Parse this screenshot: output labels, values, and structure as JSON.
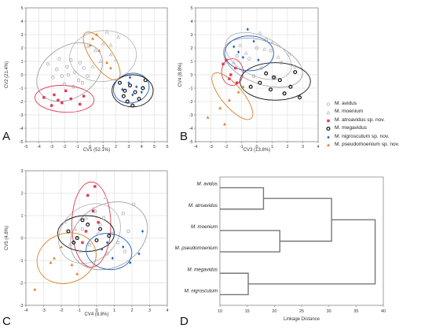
{
  "colors": {
    "M. avidus": "#a0a0a0",
    "M. moenium": "#b9b9b9",
    "M. atroavidus sp. nov.": "#e03a55",
    "M. megavidus": "#111111",
    "M. nigroscutum sp. nov.": "#1f5fbf",
    "M. pseudomoenium sp. nov.": "#d9822b"
  },
  "legend": {
    "position": "right",
    "items": [
      {
        "label": "M. avidus",
        "species": "M. avidus",
        "marker": "circle-open"
      },
      {
        "label": "M. moenium",
        "species": "M. moenium",
        "marker": "triangle-open"
      },
      {
        "label": "M. atroavidus sp. nov.",
        "species": "M. atroavidus sp. nov.",
        "marker": "square"
      },
      {
        "label": "M. megavidus",
        "species": "M. megavidus",
        "marker": "circle-bold"
      },
      {
        "label": "M. nigroscutum sp. nov.",
        "species": "M. nigroscutum sp. nov.",
        "marker": "diamond"
      },
      {
        "label": "M. pseudomoenium sp. nov.",
        "species": "M. pseudomoenium sp. nov.",
        "marker": "triangle-filled"
      }
    ]
  },
  "panel_letters": {
    "A": "A",
    "B": "B",
    "C": "C",
    "D": "D"
  },
  "chart_data": [
    {
      "type": "scatter",
      "panel": "A",
      "xlabel": "CV1 (52.1%)",
      "ylabel": "CV2 (21.4%)",
      "xlim": [
        -5,
        6
      ],
      "ylim": [
        -5,
        5
      ],
      "xticks": [
        -5,
        -4,
        -3,
        -2,
        -1,
        0,
        1,
        2,
        3,
        4,
        5,
        6
      ],
      "yticks": [
        -5,
        -4,
        -3,
        -2,
        -1,
        0,
        1,
        2,
        3,
        4,
        5
      ],
      "grid": true,
      "ellipses": [
        {
          "species": "M. avidus",
          "cx": -1.6,
          "cy": 0.2,
          "rx": 2.8,
          "ry": 1.9,
          "angle": 35
        },
        {
          "species": "M. moenium",
          "cx": 1.0,
          "cy": 1.4,
          "rx": 2.6,
          "ry": 1.9,
          "angle": 5
        },
        {
          "species": "M. atroavidus sp. nov.",
          "cx": -2.0,
          "cy": -1.8,
          "rx": 2.3,
          "ry": 1.0,
          "angle": -3
        },
        {
          "species": "M. megavidus",
          "cx": 3.3,
          "cy": -1.2,
          "rx": 1.6,
          "ry": 1.2,
          "angle": 0
        },
        {
          "species": "M. nigroscutum sp. nov.",
          "cx": 3.2,
          "cy": -1.0,
          "rx": 1.4,
          "ry": 1.1,
          "angle": 15
        },
        {
          "species": "M. pseudomoenium sp. nov.",
          "cx": 0.9,
          "cy": 1.4,
          "rx": 2.2,
          "ry": 0.8,
          "angle": -55
        }
      ],
      "points": [
        {
          "species": "M. avidus",
          "pts": [
            [
              -2.6,
              0.4
            ],
            [
              -2.2,
              -0.1
            ],
            [
              -1.8,
              0.6
            ],
            [
              -1.2,
              0.2
            ],
            [
              -0.9,
              -0.4
            ],
            [
              -0.5,
              0.5
            ],
            [
              -2.9,
              -0.2
            ],
            [
              -1.5,
              1.1
            ],
            [
              -0.8,
              0.9
            ],
            [
              -2.0,
              -0.7
            ],
            [
              -1.3,
              -0.9
            ],
            [
              -0.2,
              -0.1
            ],
            [
              -3.3,
              0.8
            ],
            [
              -1.7,
              0.0
            ],
            [
              -0.6,
              -0.6
            ],
            [
              -2.4,
              1.2
            ]
          ]
        },
        {
          "species": "M. moenium",
          "pts": [
            [
              0.4,
              1.8
            ],
            [
              1.0,
              2.3
            ],
            [
              1.6,
              1.5
            ],
            [
              2.2,
              2.8
            ],
            [
              0.8,
              1.0
            ],
            [
              1.3,
              3.2
            ],
            [
              -0.2,
              2.1
            ],
            [
              2.0,
              1.1
            ],
            [
              1.6,
              2.2
            ],
            [
              0.2,
              0.6
            ]
          ]
        },
        {
          "species": "M. atroavidus sp. nov.",
          "pts": [
            [
              -3.6,
              -1.7
            ],
            [
              -2.8,
              -1.5
            ],
            [
              -2.2,
              -2.1
            ],
            [
              -1.5,
              -1.8
            ],
            [
              -0.8,
              -2.2
            ],
            [
              -3.0,
              -2.3
            ],
            [
              -1.9,
              -1.2
            ],
            [
              -0.5,
              -1.6
            ],
            [
              -2.5,
              -1.9
            ]
          ]
        },
        {
          "species": "M. megavidus",
          "pts": [
            [
              2.6,
              -1.6
            ],
            [
              3.1,
              -0.8
            ],
            [
              3.5,
              -1.3
            ],
            [
              4.1,
              -1.0
            ],
            [
              2.9,
              -2.0
            ],
            [
              3.8,
              -1.8
            ],
            [
              2.3,
              -0.6
            ],
            [
              3.3,
              -2.3
            ],
            [
              4.3,
              -0.4
            ],
            [
              2.7,
              -1.2
            ]
          ]
        },
        {
          "species": "M. nigroscutum sp. nov.",
          "pts": [
            [
              3.0,
              -0.6
            ],
            [
              3.6,
              -0.9
            ],
            [
              2.5,
              -1.1
            ],
            [
              3.3,
              -1.5
            ],
            [
              4.0,
              -1.3
            ],
            [
              3.1,
              -0.2
            ]
          ]
        },
        {
          "species": "M. pseudomoenium sp. nov.",
          "pts": [
            [
              0.2,
              2.7
            ],
            [
              0.7,
              1.8
            ],
            [
              1.3,
              0.9
            ],
            [
              0.0,
              2.2
            ],
            [
              1.6,
              0.5
            ],
            [
              0.5,
              3.0
            ]
          ]
        }
      ]
    },
    {
      "type": "scatter",
      "panel": "B",
      "xlabel": "CV3 (13.8%)",
      "ylabel": "CV4 (8.8%)",
      "xlim": [
        -4,
        4
      ],
      "ylim": [
        -5,
        5
      ],
      "xticks": [
        -4,
        -3,
        -2,
        -1,
        0,
        1,
        2,
        3,
        4
      ],
      "yticks": [
        -5,
        -4,
        -3,
        -2,
        -1,
        0,
        1,
        2,
        3,
        4,
        5
      ],
      "grid": true,
      "ellipses": [
        {
          "species": "M. avidus",
          "cx": 0.4,
          "cy": 0.9,
          "rx": 2.7,
          "ry": 1.6,
          "angle": -20
        },
        {
          "species": "M. moenium",
          "cx": 0.1,
          "cy": 1.4,
          "rx": 2.3,
          "ry": 1.5,
          "angle": -25
        },
        {
          "species": "M. atroavidus sp. nov.",
          "cx": -1.6,
          "cy": 0.2,
          "rx": 0.7,
          "ry": 1.0,
          "angle": 0
        },
        {
          "species": "M. megavidus",
          "cx": 1.2,
          "cy": -0.5,
          "rx": 2.3,
          "ry": 1.4,
          "angle": 0
        },
        {
          "species": "M. nigroscutum sp. nov.",
          "cx": -0.5,
          "cy": 1.6,
          "rx": 1.6,
          "ry": 1.3,
          "angle": 0
        },
        {
          "species": "M. pseudomoenium sp. nov.",
          "cx": -1.6,
          "cy": -1.6,
          "rx": 1.9,
          "ry": 0.8,
          "angle": -50
        }
      ],
      "points": [
        {
          "species": "M. avidus",
          "pts": [
            [
              -0.5,
              1.2
            ],
            [
              0.3,
              0.5
            ],
            [
              0.9,
              1.8
            ],
            [
              1.6,
              0.9
            ],
            [
              -0.9,
              0.3
            ],
            [
              2.1,
              1.5
            ],
            [
              0.0,
              2.0
            ],
            [
              1.2,
              -0.2
            ],
            [
              -1.3,
              1.4
            ],
            [
              2.5,
              0.6
            ],
            [
              0.6,
              2.6
            ],
            [
              -0.2,
              -0.1
            ]
          ]
        },
        {
          "species": "M. moenium",
          "pts": [
            [
              -1.1,
              2.2
            ],
            [
              -0.3,
              2.8
            ],
            [
              0.5,
              1.9
            ],
            [
              1.0,
              2.4
            ],
            [
              -0.7,
              1.6
            ],
            [
              0.2,
              3.1
            ],
            [
              1.4,
              1.3
            ],
            [
              -1.5,
              0.9
            ]
          ]
        },
        {
          "species": "M. atroavidus sp. nov.",
          "pts": [
            [
              -2.2,
              0.8
            ],
            [
              -1.8,
              -0.3
            ],
            [
              -1.4,
              0.5
            ],
            [
              -2.0,
              1.1
            ],
            [
              -1.3,
              -0.6
            ],
            [
              -1.7,
              0.0
            ]
          ]
        },
        {
          "species": "M. megavidus",
          "pts": [
            [
              0.2,
              -0.6
            ],
            [
              0.9,
              -1.1
            ],
            [
              1.5,
              -0.4
            ],
            [
              2.2,
              -0.9
            ],
            [
              2.8,
              -1.7
            ],
            [
              0.6,
              0.1
            ],
            [
              1.8,
              -1.4
            ],
            [
              -0.4,
              -0.9
            ],
            [
              2.5,
              0.2
            ],
            [
              1.1,
              -0.2
            ]
          ]
        },
        {
          "species": "M. nigroscutum sp. nov.",
          "pts": [
            [
              -1.5,
              2.1
            ],
            [
              -0.9,
              1.3
            ],
            [
              -0.2,
              2.5
            ],
            [
              -1.2,
              1.7
            ],
            [
              0.1,
              1.1
            ],
            [
              -0.6,
              3.4
            ]
          ]
        },
        {
          "species": "M. pseudomoenium sp. nov.",
          "pts": [
            [
              -3.2,
              -3.2
            ],
            [
              -2.4,
              -2.5
            ],
            [
              -1.8,
              -1.9
            ],
            [
              -1.2,
              -1.3
            ],
            [
              -2.1,
              -3.7
            ],
            [
              -0.9,
              -0.9
            ]
          ]
        }
      ]
    },
    {
      "type": "scatter",
      "panel": "C",
      "xlabel": "CV4 (8.8%)",
      "ylabel": "CV5 (4.8%)",
      "xlim": [
        -4,
        4
      ],
      "ylim": [
        -3,
        3
      ],
      "xticks": [
        -4,
        -3,
        -2,
        -1,
        0,
        1,
        2,
        3,
        4
      ],
      "yticks": [
        -3,
        -2,
        -1,
        0,
        1,
        2,
        3
      ],
      "grid": true,
      "ellipses": [
        {
          "species": "M. avidus",
          "cx": 0.7,
          "cy": 0.1,
          "rx": 2.3,
          "ry": 1.4,
          "angle": 30
        },
        {
          "species": "M. moenium",
          "cx": -0.4,
          "cy": 0.2,
          "rx": 1.9,
          "ry": 1.2,
          "angle": 40
        },
        {
          "species": "M. atroavidus sp. nov.",
          "cx": -0.3,
          "cy": 0.6,
          "rx": 1.1,
          "ry": 1.9,
          "angle": 0
        },
        {
          "species": "M. megavidus",
          "cx": -0.6,
          "cy": 0.2,
          "rx": 1.6,
          "ry": 0.8,
          "angle": 0
        },
        {
          "species": "M. nigroscutum sp. nov.",
          "cx": 0.7,
          "cy": -0.6,
          "rx": 1.3,
          "ry": 0.8,
          "angle": -10
        },
        {
          "species": "M. pseudomoenium sp. nov.",
          "cx": -1.7,
          "cy": -0.9,
          "rx": 1.7,
          "ry": 1.1,
          "angle": 20
        }
      ],
      "points": [
        {
          "species": "M. avidus",
          "pts": [
            [
              0.2,
              0.6
            ],
            [
              0.9,
              0.2
            ],
            [
              1.5,
              1.1
            ],
            [
              -0.4,
              -0.3
            ],
            [
              1.8,
              0.3
            ],
            [
              0.6,
              -0.7
            ],
            [
              2.1,
              1.5
            ],
            [
              -0.1,
              1.2
            ],
            [
              1.2,
              -0.2
            ],
            [
              0.4,
              0.9
            ],
            [
              -0.8,
              0.4
            ],
            [
              1.6,
              -0.6
            ]
          ]
        },
        {
          "species": "M. moenium",
          "pts": [
            [
              -1.2,
              0.4
            ],
            [
              -0.6,
              0.9
            ],
            [
              -1.5,
              -0.3
            ],
            [
              0.1,
              0.2
            ],
            [
              -0.9,
              -0.6
            ],
            [
              -0.2,
              1.3
            ],
            [
              -1.8,
              0.7
            ],
            [
              0.5,
              1.8
            ]
          ]
        },
        {
          "species": "M. atroavidus sp. nov.",
          "pts": [
            [
              -0.5,
              1.9
            ],
            [
              -0.2,
              1.2
            ],
            [
              -0.6,
              0.3
            ],
            [
              0.1,
              0.7
            ],
            [
              -0.8,
              -0.2
            ],
            [
              -0.1,
              2.3
            ]
          ]
        },
        {
          "species": "M. megavidus",
          "pts": [
            [
              -1.6,
              0.3
            ],
            [
              -1.1,
              0.0
            ],
            [
              -0.5,
              0.6
            ],
            [
              0.2,
              0.4
            ],
            [
              0.7,
              0.1
            ],
            [
              -1.3,
              -0.2
            ],
            [
              -0.8,
              0.8
            ],
            [
              0.0,
              -0.1
            ]
          ]
        },
        {
          "species": "M. nigroscutum sp. nov.",
          "pts": [
            [
              0.3,
              -0.5
            ],
            [
              0.9,
              -0.9
            ],
            [
              1.5,
              -0.4
            ],
            [
              1.9,
              -1.1
            ],
            [
              2.6,
              0.3
            ],
            [
              0.6,
              -0.2
            ],
            [
              2.4,
              -0.7
            ]
          ]
        },
        {
          "species": "M. pseudomoenium sp. nov.",
          "pts": [
            [
              -3.5,
              -2.3
            ],
            [
              -2.6,
              -1.1
            ],
            [
              -2.0,
              -0.4
            ],
            [
              -1.4,
              -1.2
            ],
            [
              -2.4,
              -0.9
            ],
            [
              -1.1,
              -1.6
            ]
          ]
        }
      ]
    },
    {
      "type": "dendrogram",
      "panel": "D",
      "xlabel": "Linkage Distance",
      "xlim": [
        10,
        40
      ],
      "xticks": [
        10,
        15,
        20,
        25,
        30,
        35,
        40
      ],
      "leaves": [
        "M. avidus",
        "M. atroavidus",
        "M. moenium",
        "M. pseudomoenium",
        "M. megavidus",
        "M. nigroscutum"
      ],
      "merges": [
        {
          "a": 0,
          "b": 1,
          "height": 18.0
        },
        {
          "a": 2,
          "b": 3,
          "height": 21.0
        },
        {
          "a": 4,
          "b": 5,
          "height": 15.2
        },
        {
          "a": 6,
          "b": 7,
          "height": 30.5
        },
        {
          "a": 9,
          "b": 8,
          "height": 38.5
        }
      ]
    }
  ]
}
